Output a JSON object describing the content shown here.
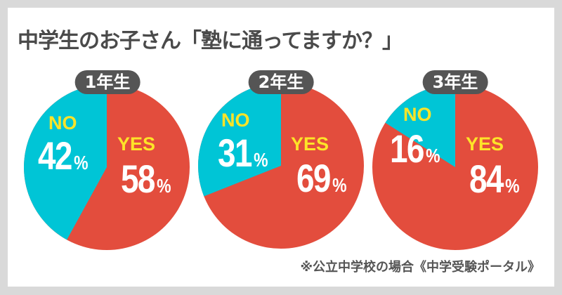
{
  "title": "中学生のお子さん「塾に通ってますか？」",
  "footnote": "※公立中学校の場合《中学受験ポータル》",
  "colors": {
    "yes": "#e34d3d",
    "no": "#00c5d6",
    "label_name": "#fde428",
    "label_value": "#ffffff",
    "badge_bg": "#555555",
    "background": "#d9d9d9",
    "card": "#ffffff"
  },
  "charts": [
    {
      "grade": "1年生",
      "no_label": "NO",
      "no_value": "42",
      "yes_label": "YES",
      "yes_value": "58",
      "pct": "%"
    },
    {
      "grade": "2年生",
      "no_label": "NO",
      "no_value": "31",
      "yes_label": "YES",
      "yes_value": "69",
      "pct": "%"
    },
    {
      "grade": "3年生",
      "no_label": "NO",
      "no_value": "16",
      "yes_label": "YES",
      "yes_value": "84",
      "pct": "%"
    }
  ],
  "chart_data": [
    {
      "type": "pie",
      "title": "1年生",
      "categories": [
        "YES",
        "NO"
      ],
      "values": [
        58,
        42
      ],
      "colors": [
        "#e34d3d",
        "#00c5d6"
      ]
    },
    {
      "type": "pie",
      "title": "2年生",
      "categories": [
        "YES",
        "NO"
      ],
      "values": [
        69,
        31
      ],
      "colors": [
        "#e34d3d",
        "#00c5d6"
      ]
    },
    {
      "type": "pie",
      "title": "3年生",
      "categories": [
        "YES",
        "NO"
      ],
      "values": [
        84,
        16
      ],
      "colors": [
        "#e34d3d",
        "#00c5d6"
      ]
    }
  ]
}
